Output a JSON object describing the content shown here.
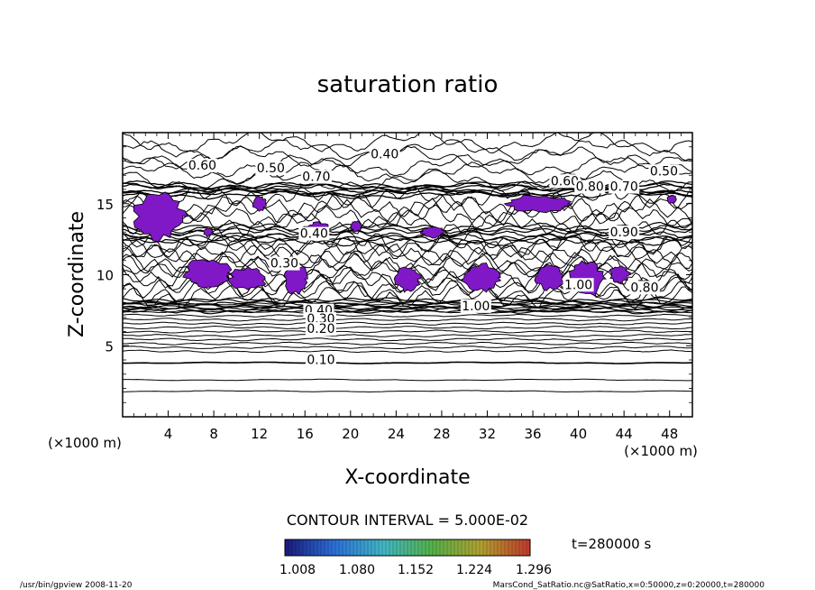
{
  "chart_data": {
    "type": "contour",
    "title": "saturation ratio",
    "xlabel": "X-coordinate",
    "ylabel": "Z-coordinate",
    "x_unit": "(×1000 m)",
    "z_unit": "(×1000 m)",
    "xlim": [
      0,
      50
    ],
    "ylim": [
      0,
      20
    ],
    "x_ticks": [
      4,
      8,
      12,
      16,
      20,
      24,
      28,
      32,
      36,
      40,
      44,
      48
    ],
    "y_ticks": [
      5,
      10,
      15
    ],
    "contour_interval_label": "CONTOUR INTERVAL = 5.000E-02",
    "time_label": "t=280000 s",
    "colorbar": {
      "ticks": [
        "1.008",
        "1.080",
        "1.152",
        "1.224",
        "1.296"
      ],
      "colors": [
        "#1a1a7a",
        "#2b6fd6",
        "#41b6c4",
        "#55b04a",
        "#b0a030",
        "#c0392b"
      ]
    },
    "contour_labels": [
      {
        "text": "0.40",
        "x": 23.0,
        "z": 18.2
      },
      {
        "text": "0.60",
        "x": 7.0,
        "z": 17.4
      },
      {
        "text": "0.50",
        "x": 13.0,
        "z": 17.2
      },
      {
        "text": "0.70",
        "x": 17.0,
        "z": 16.6
      },
      {
        "text": "0.50",
        "x": 47.5,
        "z": 17.0
      },
      {
        "text": "0.60",
        "x": 38.8,
        "z": 16.3
      },
      {
        "text": "0.70",
        "x": 44.0,
        "z": 15.9
      },
      {
        "text": "0.80",
        "x": 41.0,
        "z": 15.9
      },
      {
        "text": "0.40",
        "x": 16.8,
        "z": 12.6
      },
      {
        "text": "0.90",
        "x": 44.0,
        "z": 12.7
      },
      {
        "text": "0.30",
        "x": 14.2,
        "z": 10.5
      },
      {
        "text": "1.00",
        "x": 40.0,
        "z": 9.0
      },
      {
        "text": "0.80",
        "x": 45.8,
        "z": 8.8
      },
      {
        "text": "1.00",
        "x": 31.0,
        "z": 7.5
      },
      {
        "text": "0.40",
        "x": 17.2,
        "z": 7.2
      },
      {
        "text": "0.30",
        "x": 17.4,
        "z": 6.6
      },
      {
        "text": "0.20",
        "x": 17.4,
        "z": 5.9
      },
      {
        "text": "0.10",
        "x": 17.4,
        "z": 3.7
      }
    ],
    "supersaturated_regions_color": "#8018c8"
  },
  "footer": {
    "left": "/usr/bin/gpview  2008-11-20",
    "right": "MarsCond_SatRatio.nc@SatRatio,x=0:50000,z=0:20000,t=280000"
  }
}
